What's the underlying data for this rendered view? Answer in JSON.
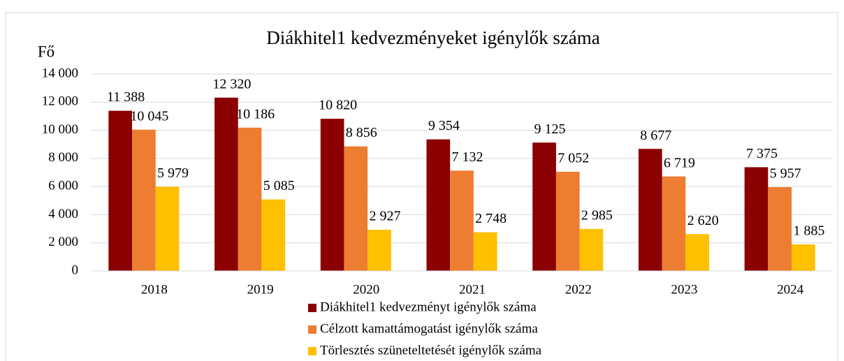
{
  "chart_data": {
    "type": "bar",
    "title": "Diákhitel1 kedvezményeket igénylők száma",
    "y_label": "Fő",
    "categories": [
      "2018",
      "2019",
      "2020",
      "2021",
      "2022",
      "2023",
      "2024"
    ],
    "series": [
      {
        "name": "Diákhitel1 kedvezményt igénylők száma",
        "color": "#8b0000",
        "values": [
          11388,
          12320,
          10820,
          9354,
          9125,
          8677,
          7375
        ],
        "value_labels": [
          "11 388",
          "12 320",
          "10 820",
          "9 354",
          "9 125",
          "8 677",
          "7 375"
        ]
      },
      {
        "name": "Célzott kamattámogatást igénylők száma",
        "color": "#ed7d31",
        "values": [
          10045,
          10186,
          8856,
          7132,
          7052,
          6719,
          5957
        ],
        "value_labels": [
          "10 045",
          "10 186",
          "8 856",
          "7 132",
          "7 052",
          "6 719",
          "5 957"
        ]
      },
      {
        "name": "Törlesztés szüneteltetését igénylők száma",
        "color": "#ffc000",
        "values": [
          5979,
          5085,
          2927,
          2748,
          2985,
          2620,
          1885
        ],
        "value_labels": [
          "5 979",
          "5 085",
          "2 927",
          "2 748",
          "2 985",
          "2 620",
          "1 885"
        ]
      }
    ],
    "ylim": [
      0,
      14000
    ],
    "yticks": [
      0,
      {
        "value": 2000,
        "label": "2 000"
      },
      {
        "value": 4000,
        "label": "4 000"
      },
      {
        "value": 6000,
        "label": "6 000"
      },
      {
        "value": 8000,
        "label": "8 000"
      },
      {
        "value": 10000,
        "label": "10 000"
      },
      {
        "value": 12000,
        "label": "12 000"
      },
      {
        "value": 14000,
        "label": "14 000"
      }
    ],
    "grid": true,
    "legend": "bottom"
  }
}
